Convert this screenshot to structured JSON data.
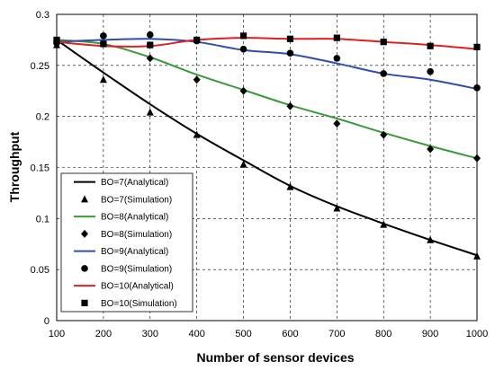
{
  "chart_data": {
    "type": "line",
    "title": "",
    "xlabel": "Number of sensor devices",
    "ylabel": "Throughput",
    "xlim": [
      100,
      1000
    ],
    "ylim": [
      0,
      0.3
    ],
    "x_ticks": [
      "100",
      "200",
      "300",
      "400",
      "500",
      "600",
      "700",
      "800",
      "900",
      "1000"
    ],
    "y_ticks": [
      "0",
      "0.05",
      "0.1",
      "0.15",
      "0.2",
      "0.25",
      "0.3"
    ],
    "grid": "dashed",
    "legend_position": "bottom-left",
    "x": [
      100,
      200,
      300,
      400,
      500,
      600,
      700,
      800,
      900,
      1000
    ],
    "series": [
      {
        "name": "BO=7(Analytical)",
        "kind": "line",
        "color": "#000000",
        "values": [
          0.275,
          0.243,
          0.212,
          0.183,
          0.157,
          0.132,
          0.112,
          0.095,
          0.079,
          0.064
        ]
      },
      {
        "name": "BO=7(Simulation)",
        "kind": "marker",
        "marker": "triangle",
        "color": "#000000",
        "values": [
          0.27,
          0.236,
          0.204,
          0.182,
          0.153,
          0.131,
          0.11,
          0.094,
          0.079,
          0.063
        ]
      },
      {
        "name": "BO=8(Analytical)",
        "kind": "line",
        "color": "#3a9a3a",
        "values": [
          0.275,
          0.271,
          0.258,
          0.241,
          0.226,
          0.211,
          0.198,
          0.184,
          0.171,
          0.159
        ]
      },
      {
        "name": "BO=8(Simulation)",
        "kind": "marker",
        "marker": "diamond",
        "color": "#000000",
        "values": [
          0.274,
          0.272,
          0.257,
          0.236,
          0.225,
          0.21,
          0.193,
          0.182,
          0.168,
          0.159
        ]
      },
      {
        "name": "BO=9(Analytical)",
        "kind": "line",
        "color": "#2f4fa8",
        "values": [
          0.273,
          0.275,
          0.276,
          0.273,
          0.265,
          0.261,
          0.252,
          0.242,
          0.236,
          0.227
        ]
      },
      {
        "name": "BO=9(Simulation)",
        "kind": "marker",
        "marker": "circle",
        "color": "#000000",
        "values": [
          0.272,
          0.279,
          0.28,
          0.274,
          0.266,
          0.262,
          0.257,
          0.242,
          0.244,
          0.228
        ]
      },
      {
        "name": "BO=10(Analytical)",
        "kind": "line",
        "color": "#e02020",
        "values": [
          0.273,
          0.269,
          0.269,
          0.275,
          0.277,
          0.276,
          0.276,
          0.273,
          0.27,
          0.266
        ]
      },
      {
        "name": "BO=10(Simulation)",
        "kind": "marker",
        "marker": "square",
        "color": "#000000",
        "values": [
          0.275,
          0.271,
          0.27,
          0.275,
          0.279,
          0.276,
          0.277,
          0.273,
          0.269,
          0.268
        ]
      }
    ]
  }
}
